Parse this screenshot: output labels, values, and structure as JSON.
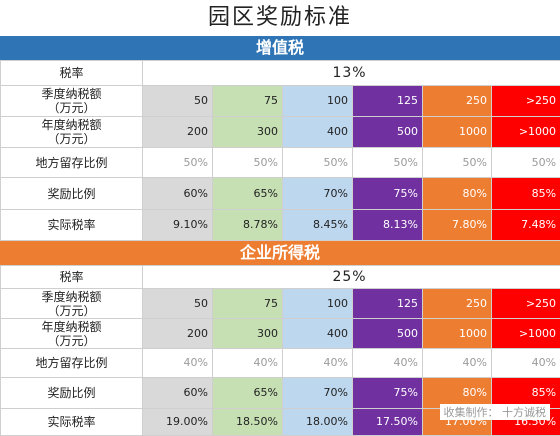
{
  "title": "园区奖励标准",
  "vat": {
    "header": "增值税",
    "rate_label": "税率",
    "rate_value": "13%",
    "rows": [
      {
        "label": "季度纳税额\n（万元）",
        "cells": [
          "50",
          "75",
          "100",
          "125",
          "250",
          ">250"
        ]
      },
      {
        "label": "年度纳税额\n（万元）",
        "cells": [
          "200",
          "300",
          "400",
          "500",
          "1000",
          ">1000"
        ]
      },
      {
        "label": "地方留存比例",
        "cells": [
          "50%",
          "50%",
          "50%",
          "50%",
          "50%",
          "50%"
        ]
      },
      {
        "label": "奖励比例",
        "cells": [
          "60%",
          "65%",
          "70%",
          "75%",
          "80%",
          "85%"
        ]
      },
      {
        "label": "实际税率",
        "cells": [
          "9.10%",
          "8.78%",
          "8.45%",
          "8.13%",
          "7.80%",
          "7.48%"
        ]
      }
    ]
  },
  "cit": {
    "header": "企业所得税",
    "rate_label": "税率",
    "rate_value": "25%",
    "rows": [
      {
        "label": "季度纳税额\n（万元）",
        "cells": [
          "50",
          "75",
          "100",
          "125",
          "250",
          ">250"
        ]
      },
      {
        "label": "年度纳税额\n（万元）",
        "cells": [
          "200",
          "300",
          "400",
          "500",
          "1000",
          ">1000"
        ]
      },
      {
        "label": "地方留存比例",
        "cells": [
          "40%",
          "40%",
          "40%",
          "40%",
          "40%",
          "40%"
        ]
      },
      {
        "label": "奖励比例",
        "cells": [
          "60%",
          "65%",
          "70%",
          "75%",
          "80%",
          "85%"
        ]
      },
      {
        "label": "实际税率",
        "cells": [
          "19.00%",
          "18.50%",
          "18.00%",
          "17.50%",
          "17.00%",
          "16.50%"
        ]
      }
    ]
  },
  "credit": "收集制作：  十方诚税",
  "colors": {
    "vat_header": "#2f75b5",
    "cit_header": "#ed7d31",
    "tier_1": "#d9d9d9",
    "tier_2": "#c6e0b4",
    "tier_3": "#bdd7ee",
    "tier_4": "#7030a0",
    "tier_5": "#ed7d31",
    "tier_6": "#ff0000"
  }
}
